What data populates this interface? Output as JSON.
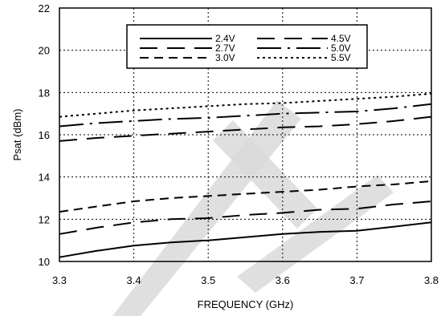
{
  "chart_data": {
    "type": "line",
    "xlabel": "FREQUENCY (GHz)",
    "ylabel": "Psat (dBm)",
    "xlim": [
      3.3,
      3.8
    ],
    "ylim": [
      10,
      22
    ],
    "xticks": [
      "3.3",
      "3.4",
      "3.5",
      "3.6",
      "3.7",
      "3.8"
    ],
    "yticks": [
      "10",
      "12",
      "14",
      "16",
      "18",
      "20",
      "22"
    ],
    "grid": true,
    "legend_position": "top-center",
    "watermark_color": "#d9d9d9",
    "series": [
      {
        "name": "2.4V",
        "dash": "solid",
        "x": [
          3.3,
          3.35,
          3.4,
          3.45,
          3.5,
          3.55,
          3.6,
          3.65,
          3.7,
          3.75,
          3.8
        ],
        "y": [
          10.2,
          10.5,
          10.75,
          10.9,
          11.0,
          11.15,
          11.3,
          11.4,
          11.45,
          11.65,
          11.85
        ]
      },
      {
        "name": "2.7V",
        "dash": "long-dash",
        "x": [
          3.3,
          3.35,
          3.4,
          3.45,
          3.5,
          3.55,
          3.6,
          3.65,
          3.7,
          3.75,
          3.8
        ],
        "y": [
          11.3,
          11.6,
          11.85,
          12.0,
          12.05,
          12.2,
          12.3,
          12.45,
          12.5,
          12.7,
          12.85
        ]
      },
      {
        "name": "3.0V",
        "dash": "dash",
        "x": [
          3.3,
          3.35,
          3.4,
          3.45,
          3.5,
          3.55,
          3.6,
          3.65,
          3.7,
          3.75,
          3.8
        ],
        "y": [
          12.35,
          12.6,
          12.85,
          13.0,
          13.1,
          13.2,
          13.3,
          13.4,
          13.55,
          13.65,
          13.8
        ]
      },
      {
        "name": "4.5V",
        "dash": "long-dash",
        "x": [
          3.3,
          3.35,
          3.4,
          3.45,
          3.5,
          3.55,
          3.6,
          3.65,
          3.7,
          3.75,
          3.8
        ],
        "y": [
          15.7,
          15.85,
          15.95,
          16.05,
          16.15,
          16.25,
          16.35,
          16.4,
          16.5,
          16.65,
          16.85
        ]
      },
      {
        "name": "5.0V",
        "dash": "dash-dot",
        "x": [
          3.3,
          3.35,
          3.4,
          3.45,
          3.5,
          3.55,
          3.6,
          3.65,
          3.7,
          3.75,
          3.8
        ],
        "y": [
          16.4,
          16.55,
          16.65,
          16.75,
          16.8,
          16.9,
          17.0,
          17.05,
          17.1,
          17.25,
          17.45
        ]
      },
      {
        "name": "5.5V",
        "dash": "dot",
        "x": [
          3.3,
          3.35,
          3.4,
          3.45,
          3.5,
          3.55,
          3.6,
          3.65,
          3.7,
          3.75,
          3.8
        ],
        "y": [
          16.85,
          17.0,
          17.15,
          17.25,
          17.35,
          17.45,
          17.5,
          17.6,
          17.7,
          17.8,
          17.95
        ]
      }
    ]
  }
}
